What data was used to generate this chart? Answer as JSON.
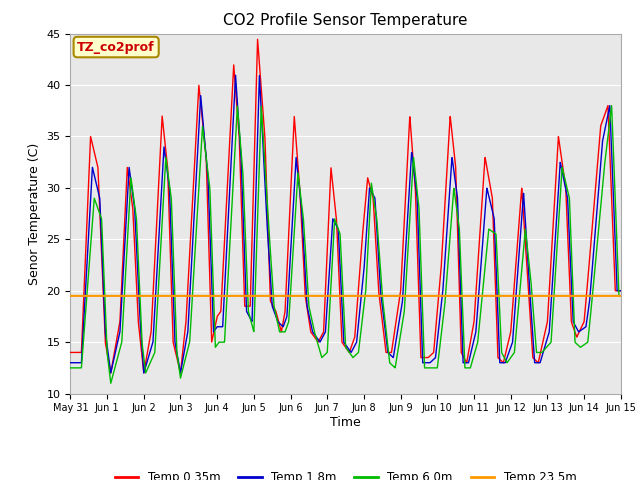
{
  "title": "CO2 Profile Sensor Temperature",
  "ylabel": "Senor Temperature (C)",
  "xlabel": "Time",
  "ylim": [
    10,
    45
  ],
  "xlim": [
    0,
    15
  ],
  "annotation_label": "TZ_co2prof",
  "annotation_bg": "#ffffcc",
  "annotation_border": "#aa8800",
  "plot_bg": "#e8e8e8",
  "legend_entries": [
    "Temp 0.35m",
    "Temp 1.8m",
    "Temp 6.0m",
    "Temp 23.5m"
  ],
  "legend_colors": [
    "#ff0000",
    "#0000cc",
    "#00bb00",
    "#ff9900"
  ],
  "flat_line_value": 19.5,
  "x_tick_labels": [
    "May 31",
    "Jun 1",
    "Jun 2",
    "Jun 3",
    "Jun 4",
    "Jun 5",
    "Jun 6",
    "Jun 7",
    "Jun 8",
    "Jun 9",
    "Jun 10",
    "Jun 11",
    "Jun 12",
    "Jun 13",
    "Jun 14",
    "Jun 15"
  ],
  "x_tick_positions": [
    0,
    1,
    2,
    3,
    4,
    5,
    6,
    7,
    8,
    9,
    10,
    11,
    12,
    13,
    14,
    15
  ],
  "red_kp": [
    [
      0.0,
      14.0
    ],
    [
      0.3,
      14.0
    ],
    [
      0.55,
      35.0
    ],
    [
      0.75,
      32.0
    ],
    [
      0.95,
      15.0
    ],
    [
      1.1,
      12.0
    ],
    [
      1.35,
      17.0
    ],
    [
      1.55,
      32.0
    ],
    [
      1.7,
      28.0
    ],
    [
      1.85,
      17.0
    ],
    [
      2.0,
      12.0
    ],
    [
      2.2,
      16.0
    ],
    [
      2.5,
      37.0
    ],
    [
      2.65,
      32.0
    ],
    [
      2.8,
      15.0
    ],
    [
      3.0,
      12.0
    ],
    [
      3.15,
      17.0
    ],
    [
      3.5,
      40.0
    ],
    [
      3.7,
      33.0
    ],
    [
      3.85,
      15.0
    ],
    [
      4.0,
      17.5
    ],
    [
      4.1,
      18.0
    ],
    [
      4.45,
      42.0
    ],
    [
      4.6,
      35.0
    ],
    [
      4.75,
      18.5
    ],
    [
      4.9,
      18.5
    ],
    [
      5.1,
      44.5
    ],
    [
      5.3,
      35.0
    ],
    [
      5.45,
      19.0
    ],
    [
      5.6,
      18.0
    ],
    [
      5.75,
      16.0
    ],
    [
      5.85,
      18.0
    ],
    [
      6.1,
      37.0
    ],
    [
      6.25,
      30.0
    ],
    [
      6.4,
      19.5
    ],
    [
      6.55,
      16.0
    ],
    [
      6.75,
      15.0
    ],
    [
      6.9,
      16.0
    ],
    [
      7.1,
      32.0
    ],
    [
      7.25,
      27.0
    ],
    [
      7.4,
      15.0
    ],
    [
      7.6,
      14.0
    ],
    [
      7.75,
      15.5
    ],
    [
      7.95,
      25.0
    ],
    [
      8.1,
      31.0
    ],
    [
      8.25,
      29.0
    ],
    [
      8.4,
      20.0
    ],
    [
      8.6,
      14.0
    ],
    [
      8.75,
      14.0
    ],
    [
      9.0,
      20.0
    ],
    [
      9.25,
      37.0
    ],
    [
      9.4,
      30.0
    ],
    [
      9.55,
      13.5
    ],
    [
      9.75,
      13.5
    ],
    [
      9.9,
      14.0
    ],
    [
      10.1,
      22.0
    ],
    [
      10.35,
      37.0
    ],
    [
      10.5,
      32.0
    ],
    [
      10.65,
      14.0
    ],
    [
      10.8,
      13.0
    ],
    [
      11.0,
      17.0
    ],
    [
      11.3,
      33.0
    ],
    [
      11.5,
      29.0
    ],
    [
      11.65,
      13.5
    ],
    [
      11.8,
      13.0
    ],
    [
      12.0,
      16.0
    ],
    [
      12.3,
      30.0
    ],
    [
      12.45,
      22.0
    ],
    [
      12.6,
      13.5
    ],
    [
      12.75,
      13.0
    ],
    [
      13.0,
      17.0
    ],
    [
      13.3,
      35.0
    ],
    [
      13.5,
      30.0
    ],
    [
      13.65,
      17.0
    ],
    [
      13.8,
      15.5
    ],
    [
      14.0,
      17.0
    ],
    [
      14.1,
      21.0
    ],
    [
      14.45,
      36.0
    ],
    [
      14.65,
      38.0
    ],
    [
      14.85,
      20.0
    ],
    [
      15.0,
      20.0
    ]
  ],
  "blue_kp": [
    [
      0.0,
      13.0
    ],
    [
      0.3,
      13.0
    ],
    [
      0.6,
      32.0
    ],
    [
      0.8,
      29.0
    ],
    [
      0.95,
      16.0
    ],
    [
      1.1,
      12.0
    ],
    [
      1.35,
      16.0
    ],
    [
      1.6,
      32.0
    ],
    [
      1.75,
      28.0
    ],
    [
      1.9,
      17.0
    ],
    [
      2.0,
      12.0
    ],
    [
      2.25,
      15.0
    ],
    [
      2.55,
      34.0
    ],
    [
      2.7,
      30.0
    ],
    [
      2.85,
      15.0
    ],
    [
      3.0,
      12.0
    ],
    [
      3.2,
      16.0
    ],
    [
      3.55,
      39.0
    ],
    [
      3.75,
      31.0
    ],
    [
      3.9,
      16.0
    ],
    [
      4.0,
      16.5
    ],
    [
      4.15,
      16.5
    ],
    [
      4.5,
      41.0
    ],
    [
      4.65,
      33.0
    ],
    [
      4.8,
      18.0
    ],
    [
      4.95,
      17.0
    ],
    [
      5.15,
      41.0
    ],
    [
      5.35,
      27.0
    ],
    [
      5.5,
      18.5
    ],
    [
      5.65,
      17.0
    ],
    [
      5.8,
      16.5
    ],
    [
      5.9,
      17.5
    ],
    [
      6.15,
      33.0
    ],
    [
      6.3,
      28.0
    ],
    [
      6.45,
      18.5
    ],
    [
      6.6,
      16.0
    ],
    [
      6.8,
      15.0
    ],
    [
      6.95,
      16.0
    ],
    [
      7.15,
      27.0
    ],
    [
      7.3,
      26.0
    ],
    [
      7.45,
      15.0
    ],
    [
      7.65,
      14.0
    ],
    [
      7.8,
      15.0
    ],
    [
      8.0,
      22.0
    ],
    [
      8.15,
      30.0
    ],
    [
      8.3,
      29.0
    ],
    [
      8.45,
      20.0
    ],
    [
      8.65,
      14.0
    ],
    [
      8.8,
      13.5
    ],
    [
      9.05,
      19.0
    ],
    [
      9.3,
      33.5
    ],
    [
      9.45,
      29.0
    ],
    [
      9.6,
      13.0
    ],
    [
      9.8,
      13.0
    ],
    [
      9.95,
      13.5
    ],
    [
      10.15,
      20.0
    ],
    [
      10.4,
      33.0
    ],
    [
      10.55,
      29.0
    ],
    [
      10.7,
      13.0
    ],
    [
      10.85,
      13.0
    ],
    [
      11.05,
      16.0
    ],
    [
      11.35,
      30.0
    ],
    [
      11.55,
      27.0
    ],
    [
      11.7,
      13.0
    ],
    [
      11.85,
      13.0
    ],
    [
      12.05,
      15.0
    ],
    [
      12.35,
      29.5
    ],
    [
      12.5,
      21.0
    ],
    [
      12.65,
      13.0
    ],
    [
      12.8,
      13.0
    ],
    [
      13.05,
      16.0
    ],
    [
      13.35,
      32.5
    ],
    [
      13.55,
      29.0
    ],
    [
      13.7,
      17.0
    ],
    [
      13.85,
      16.0
    ],
    [
      14.05,
      16.5
    ],
    [
      14.15,
      19.0
    ],
    [
      14.5,
      34.5
    ],
    [
      14.7,
      38.0
    ],
    [
      14.9,
      20.0
    ],
    [
      15.0,
      20.0
    ]
  ],
  "green_kp": [
    [
      0.0,
      12.5
    ],
    [
      0.3,
      12.5
    ],
    [
      0.65,
      29.0
    ],
    [
      0.85,
      27.0
    ],
    [
      1.0,
      14.0
    ],
    [
      1.1,
      11.0
    ],
    [
      1.4,
      15.0
    ],
    [
      1.65,
      31.0
    ],
    [
      1.8,
      27.0
    ],
    [
      1.95,
      15.0
    ],
    [
      2.05,
      12.0
    ],
    [
      2.3,
      14.0
    ],
    [
      2.6,
      33.0
    ],
    [
      2.75,
      29.0
    ],
    [
      2.9,
      14.0
    ],
    [
      3.0,
      11.5
    ],
    [
      3.25,
      15.0
    ],
    [
      3.6,
      36.0
    ],
    [
      3.8,
      30.0
    ],
    [
      3.95,
      14.5
    ],
    [
      4.05,
      15.0
    ],
    [
      4.2,
      15.0
    ],
    [
      4.55,
      38.0
    ],
    [
      4.7,
      31.5
    ],
    [
      4.85,
      18.0
    ],
    [
      5.0,
      16.0
    ],
    [
      5.2,
      38.0
    ],
    [
      5.4,
      26.5
    ],
    [
      5.55,
      18.5
    ],
    [
      5.7,
      16.0
    ],
    [
      5.85,
      16.0
    ],
    [
      5.95,
      17.0
    ],
    [
      6.2,
      31.5
    ],
    [
      6.35,
      27.0
    ],
    [
      6.5,
      18.5
    ],
    [
      6.65,
      16.0
    ],
    [
      6.85,
      13.5
    ],
    [
      7.0,
      14.0
    ],
    [
      7.2,
      27.0
    ],
    [
      7.35,
      25.5
    ],
    [
      7.5,
      14.5
    ],
    [
      7.7,
      13.5
    ],
    [
      7.85,
      14.0
    ],
    [
      8.05,
      20.0
    ],
    [
      8.2,
      30.5
    ],
    [
      8.35,
      27.0
    ],
    [
      8.5,
      19.5
    ],
    [
      8.7,
      13.0
    ],
    [
      8.85,
      12.5
    ],
    [
      9.1,
      18.0
    ],
    [
      9.35,
      33.0
    ],
    [
      9.5,
      28.0
    ],
    [
      9.65,
      12.5
    ],
    [
      9.85,
      12.5
    ],
    [
      10.0,
      12.5
    ],
    [
      10.2,
      18.5
    ],
    [
      10.45,
      30.0
    ],
    [
      10.6,
      26.0
    ],
    [
      10.75,
      12.5
    ],
    [
      10.9,
      12.5
    ],
    [
      11.1,
      15.0
    ],
    [
      11.4,
      26.0
    ],
    [
      11.6,
      25.5
    ],
    [
      11.75,
      14.0
    ],
    [
      11.9,
      13.0
    ],
    [
      12.1,
      14.0
    ],
    [
      12.4,
      26.0
    ],
    [
      12.55,
      21.0
    ],
    [
      12.7,
      14.0
    ],
    [
      12.85,
      14.0
    ],
    [
      13.1,
      15.0
    ],
    [
      13.4,
      32.0
    ],
    [
      13.6,
      29.0
    ],
    [
      13.75,
      15.0
    ],
    [
      13.9,
      14.5
    ],
    [
      14.1,
      15.0
    ],
    [
      14.2,
      18.5
    ],
    [
      14.55,
      32.0
    ],
    [
      14.75,
      38.0
    ],
    [
      14.95,
      19.5
    ],
    [
      15.0,
      19.5
    ]
  ]
}
